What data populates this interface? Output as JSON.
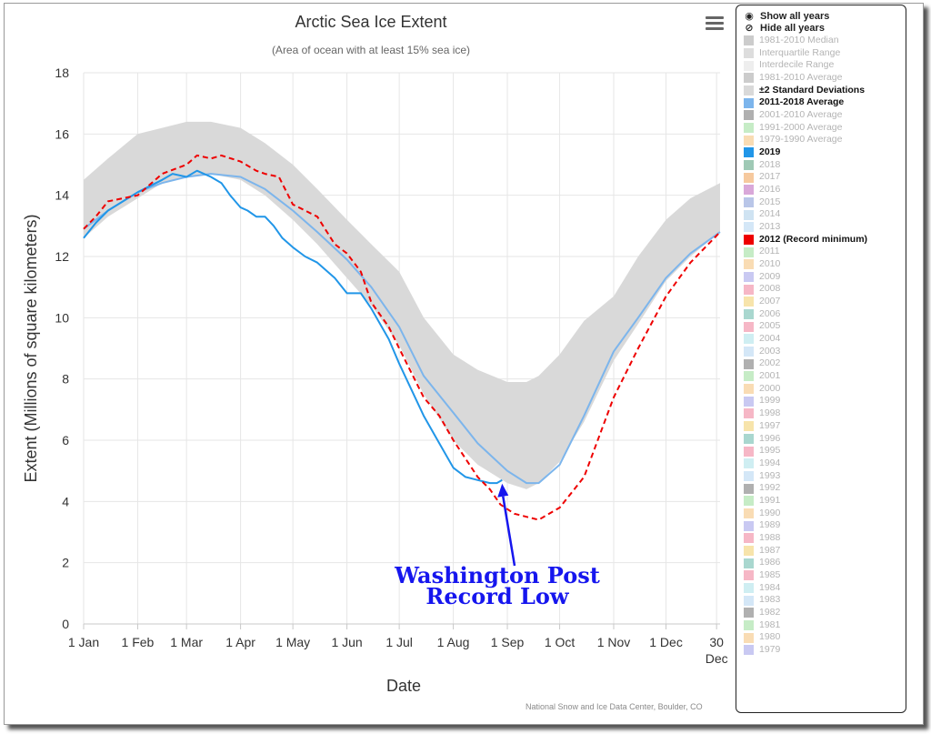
{
  "chart_data": {
    "type": "line",
    "title": "Arctic Sea Ice Extent",
    "subtitle": "(Area of ocean with at least 15% sea ice)",
    "xlabel": "Date",
    "ylabel": "Extent (Millions of square kilometers)",
    "ylim": [
      0,
      18
    ],
    "yticks": [
      0,
      2,
      4,
      6,
      8,
      10,
      12,
      14,
      16,
      18
    ],
    "xlim": [
      1,
      366
    ],
    "xticks": [
      {
        "day": 1,
        "label": "1 Jan"
      },
      {
        "day": 32,
        "label": "1 Feb"
      },
      {
        "day": 60,
        "label": "1 Mar"
      },
      {
        "day": 91,
        "label": "1 Apr"
      },
      {
        "day": 121,
        "label": "1 May"
      },
      {
        "day": 152,
        "label": "1 Jun"
      },
      {
        "day": 182,
        "label": "1 Jul"
      },
      {
        "day": 213,
        "label": "1 Aug"
      },
      {
        "day": 244,
        "label": "1 Sep"
      },
      {
        "day": 274,
        "label": "1 Oct"
      },
      {
        "day": 305,
        "label": "1 Nov"
      },
      {
        "day": 335,
        "label": "1 Dec"
      },
      {
        "day": 364,
        "label": "30\nDec"
      }
    ],
    "grid": true,
    "legend_position": "right",
    "series": [
      {
        "name": "±2 Standard Deviations",
        "kind": "band",
        "color": "#d9d9d9",
        "x": [
          1,
          15,
          32,
          46,
          60,
          74,
          91,
          105,
          121,
          135,
          152,
          166,
          182,
          196,
          213,
          227,
          244,
          255,
          262,
          274,
          288,
          305,
          319,
          335,
          349,
          366
        ],
        "upper": [
          14.5,
          15.2,
          16.0,
          16.2,
          16.4,
          16.4,
          16.2,
          15.7,
          15.0,
          14.2,
          13.2,
          12.4,
          11.5,
          10.0,
          8.8,
          8.3,
          7.9,
          7.9,
          8.1,
          8.8,
          9.9,
          10.7,
          12.0,
          13.2,
          13.9,
          14.4
        ],
        "lower": [
          12.6,
          13.3,
          13.9,
          14.4,
          14.6,
          14.7,
          14.5,
          14.0,
          13.2,
          12.4,
          11.3,
          10.4,
          9.1,
          7.5,
          6.0,
          5.2,
          4.6,
          4.4,
          4.6,
          5.3,
          6.6,
          8.6,
          9.8,
          11.2,
          12.0,
          12.8
        ]
      },
      {
        "name": "2011-2018 Average",
        "color": "#7cb5ec",
        "x": [
          1,
          15,
          32,
          46,
          60,
          74,
          91,
          105,
          121,
          135,
          152,
          166,
          182,
          196,
          213,
          227,
          244,
          255,
          262,
          274,
          288,
          305,
          319,
          335,
          349,
          366
        ],
        "y": [
          12.9,
          13.5,
          14.1,
          14.4,
          14.6,
          14.7,
          14.6,
          14.2,
          13.5,
          12.8,
          11.9,
          11.0,
          9.7,
          8.1,
          6.9,
          5.9,
          5.0,
          4.6,
          4.6,
          5.2,
          6.8,
          8.9,
          10.0,
          11.3,
          12.1,
          12.8
        ]
      },
      {
        "name": "2019",
        "color": "#2196e8",
        "x": [
          1,
          8,
          15,
          32,
          46,
          52,
          60,
          66,
          74,
          80,
          85,
          91,
          95,
          100,
          105,
          110,
          115,
          121,
          128,
          135,
          145,
          152,
          160,
          166,
          176,
          182,
          196,
          205,
          213,
          220,
          227,
          234,
          238,
          241
        ],
        "y": [
          12.6,
          13.1,
          13.5,
          14.1,
          14.5,
          14.7,
          14.6,
          14.8,
          14.6,
          14.4,
          14.0,
          13.6,
          13.5,
          13.3,
          13.3,
          13.0,
          12.6,
          12.3,
          12.0,
          11.8,
          11.3,
          10.8,
          10.8,
          10.3,
          9.3,
          8.5,
          6.8,
          5.9,
          5.1,
          4.8,
          4.7,
          4.6,
          4.6,
          4.7
        ]
      },
      {
        "name": "2012 (Record minimum)",
        "color": "#ee0000",
        "dashed": true,
        "x": [
          1,
          8,
          15,
          32,
          46,
          60,
          66,
          74,
          80,
          91,
          100,
          105,
          113,
          121,
          128,
          135,
          145,
          152,
          160,
          166,
          176,
          182,
          196,
          205,
          213,
          220,
          227,
          234,
          240,
          248,
          255,
          262,
          274,
          288,
          305,
          319,
          335,
          349,
          366
        ],
        "y": [
          12.9,
          13.3,
          13.8,
          14.0,
          14.7,
          15.0,
          15.3,
          15.2,
          15.3,
          15.1,
          14.8,
          14.7,
          14.6,
          13.7,
          13.5,
          13.3,
          12.4,
          12.1,
          11.5,
          10.5,
          9.7,
          9.0,
          7.4,
          6.8,
          6.0,
          5.4,
          4.8,
          4.4,
          3.9,
          3.6,
          3.5,
          3.4,
          3.8,
          4.8,
          7.4,
          9.0,
          10.7,
          11.8,
          12.8
        ]
      }
    ],
    "annotation": {
      "text_lines": [
        "Washington Post",
        "Record Low"
      ],
      "color": "#1616ee",
      "point": {
        "x": 241,
        "y": 4.7
      }
    }
  },
  "legend": {
    "actions": [
      {
        "label": "Show all years",
        "icon": "eye-icon"
      },
      {
        "label": "Hide all years",
        "icon": "eye-slash-icon"
      }
    ],
    "items": [
      {
        "label": "1981-2010 Median",
        "color": "#cccccc",
        "active": false
      },
      {
        "label": "Interquartile Range",
        "color": "#dddddd",
        "active": false
      },
      {
        "label": "Interdecile Range",
        "color": "#eeeeee",
        "active": false
      },
      {
        "label": "1981-2010 Average",
        "color": "#cccccc",
        "active": false
      },
      {
        "label": "±2 Standard Deviations",
        "color": "#d9d9d9",
        "active": true
      },
      {
        "label": "2011-2018 Average",
        "color": "#7cb5ec",
        "active": true
      },
      {
        "label": "2001-2010 Average",
        "color": "#b0b0b0",
        "active": false
      },
      {
        "label": "1991-2000 Average",
        "color": "#c6ecc6",
        "active": false
      },
      {
        "label": "1979-1990 Average",
        "color": "#f9dcb4",
        "active": false
      },
      {
        "label": "2019",
        "color": "#2196e8",
        "active": true
      },
      {
        "label": "2018",
        "color": "#9fc9b5",
        "active": false
      },
      {
        "label": "2017",
        "color": "#f6c99e",
        "active": false
      },
      {
        "label": "2016",
        "color": "#d9a8d9",
        "active": false
      },
      {
        "label": "2015",
        "color": "#b9c6e8",
        "active": false
      },
      {
        "label": "2014",
        "color": "#cfe3f2",
        "active": false
      },
      {
        "label": "2013",
        "color": "#d4e7f7",
        "active": false
      },
      {
        "label": "2012 (Record minimum)",
        "color": "#ee0000",
        "active": true
      },
      {
        "label": "2011",
        "color": "#c6ecc6",
        "active": false
      },
      {
        "label": "2010",
        "color": "#f9dcb4",
        "active": false
      },
      {
        "label": "2009",
        "color": "#c9c9f2",
        "active": false
      },
      {
        "label": "2008",
        "color": "#f6b7c6",
        "active": false
      },
      {
        "label": "2007",
        "color": "#f7e4ab",
        "active": false
      },
      {
        "label": "2006",
        "color": "#a9d7cf",
        "active": false
      },
      {
        "label": "2005",
        "color": "#f6b7c6",
        "active": false
      },
      {
        "label": "2004",
        "color": "#cfeef2",
        "active": false
      },
      {
        "label": "2003",
        "color": "#d4e7f7",
        "active": false
      },
      {
        "label": "2002",
        "color": "#b0b0b0",
        "active": false
      },
      {
        "label": "2001",
        "color": "#c6ecc6",
        "active": false
      },
      {
        "label": "2000",
        "color": "#f9dcb4",
        "active": false
      },
      {
        "label": "1999",
        "color": "#c9c9f2",
        "active": false
      },
      {
        "label": "1998",
        "color": "#f6b7c6",
        "active": false
      },
      {
        "label": "1997",
        "color": "#f7e4ab",
        "active": false
      },
      {
        "label": "1996",
        "color": "#a9d7cf",
        "active": false
      },
      {
        "label": "1995",
        "color": "#f6b7c6",
        "active": false
      },
      {
        "label": "1994",
        "color": "#cfeef2",
        "active": false
      },
      {
        "label": "1993",
        "color": "#d4e7f7",
        "active": false
      },
      {
        "label": "1992",
        "color": "#b0b0b0",
        "active": false
      },
      {
        "label": "1991",
        "color": "#c6ecc6",
        "active": false
      },
      {
        "label": "1990",
        "color": "#f9dcb4",
        "active": false
      },
      {
        "label": "1989",
        "color": "#c9c9f2",
        "active": false
      },
      {
        "label": "1988",
        "color": "#f6b7c6",
        "active": false
      },
      {
        "label": "1987",
        "color": "#f7e4ab",
        "active": false
      },
      {
        "label": "1986",
        "color": "#a9d7cf",
        "active": false
      },
      {
        "label": "1985",
        "color": "#f6b7c6",
        "active": false
      },
      {
        "label": "1984",
        "color": "#cfeef2",
        "active": false
      },
      {
        "label": "1983",
        "color": "#d4e7f7",
        "active": false
      },
      {
        "label": "1982",
        "color": "#b0b0b0",
        "active": false
      },
      {
        "label": "1981",
        "color": "#c6ecc6",
        "active": false
      },
      {
        "label": "1980",
        "color": "#f9dcb4",
        "active": false
      },
      {
        "label": "1979",
        "color": "#c9c9f2",
        "active": false
      }
    ]
  },
  "menu_icon": "hamburger-menu-icon",
  "credit": "National Snow and Ice Data Center, Boulder, CO"
}
